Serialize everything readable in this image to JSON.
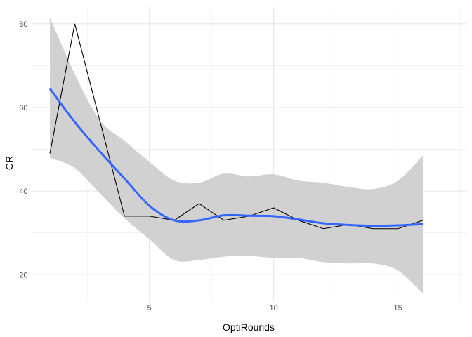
{
  "chart_data": {
    "type": "line",
    "title": "",
    "xlabel": "OptiRounds",
    "ylabel": "CR",
    "xlim": [
      0.25,
      17.75
    ],
    "ylim": [
      13.5,
      84
    ],
    "xticks": [
      5,
      10,
      15
    ],
    "yticks": [
      20,
      40,
      60,
      80
    ],
    "grid": true,
    "legend": "none",
    "x": [
      1,
      2,
      3,
      4,
      5,
      6,
      7,
      8,
      9,
      10,
      11,
      12,
      13,
      14,
      15,
      16
    ],
    "series": [
      {
        "type": "line",
        "color": "#000000",
        "values": [
          49,
          80,
          57,
          34,
          34,
          33,
          37,
          33,
          34,
          36,
          33,
          31,
          32,
          31,
          31,
          33
        ]
      }
    ],
    "smooth": {
      "method": "loess",
      "color": "#3366FF",
      "band_color": "#cccccc",
      "fit": [
        64.5,
        56.5,
        49.5,
        43,
        36.5,
        33,
        33,
        34.2,
        34.1,
        34,
        33.2,
        32.3,
        31.9,
        31.7,
        31.8,
        32.1
      ],
      "upper": [
        81.5,
        68,
        57,
        52,
        47,
        42.5,
        42,
        44.2,
        43.5,
        44,
        42.5,
        42,
        41,
        40.5,
        42.5,
        48.5
      ],
      "lower": [
        48,
        45.5,
        39.5,
        33.5,
        28.5,
        23.5,
        23.5,
        24.3,
        24.5,
        24,
        24,
        23,
        22.7,
        22.7,
        21,
        15.5
      ]
    }
  }
}
